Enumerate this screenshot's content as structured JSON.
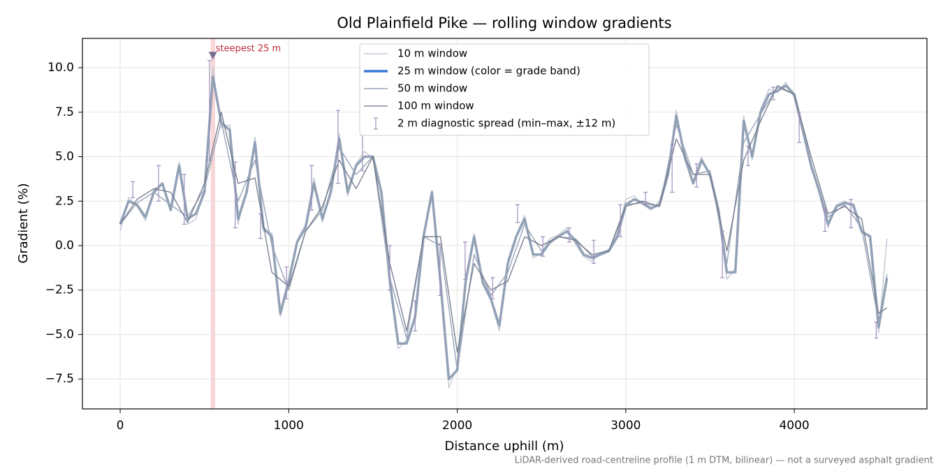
{
  "chart_data": {
    "type": "line",
    "title": "Old Plainfield Pike — rolling window gradients",
    "x_label": "Distance uphill (m)",
    "y_label": "Gradient (%)",
    "footnote": "LiDAR-derived road-centreline profile (1 m DTM, bilinear) — not a surveyed asphalt gradient",
    "xlim": [
      -224,
      4787
    ],
    "ylim": [
      -9.18,
      11.65
    ],
    "xticks": [
      0,
      1000,
      2000,
      3000,
      4000
    ],
    "yticks": [
      {
        "value": -7.5,
        "label": "−7.5"
      },
      {
        "value": -5,
        "label": "−5.0"
      },
      {
        "value": -2.5,
        "label": "−2.5"
      },
      {
        "value": 0,
        "label": "0.0"
      },
      2.5,
      {
        "value": 5,
        "label": "5.0"
      },
      7.5,
      {
        "value": 10,
        "label": "10.0"
      }
    ],
    "grid": true,
    "legend": "upper center",
    "series": [
      {
        "name": "10 m window",
        "color": "#c3c8d6",
        "width": 1.5,
        "x": [
          0,
          50,
          100,
          150,
          200,
          250,
          300,
          350,
          400,
          450,
          500,
          550,
          600,
          650,
          700,
          750,
          800,
          850,
          900,
          950,
          1000,
          1050,
          1100,
          1150,
          1200,
          1250,
          1300,
          1350,
          1400,
          1450,
          1500,
          1550,
          1600,
          1650,
          1700,
          1750,
          1800,
          1850,
          1900,
          1950,
          2000,
          2050,
          2100,
          2150,
          2200,
          2250,
          2300,
          2350,
          2400,
          2450,
          2500,
          2550,
          2600,
          2650,
          2700,
          2750,
          2800,
          2850,
          2900,
          2950,
          3000,
          3050,
          3100,
          3150,
          3200,
          3250,
          3300,
          3350,
          3400,
          3450,
          3500,
          3550,
          3600,
          3650,
          3700,
          3750,
          3800,
          3850,
          3900,
          3950,
          4000,
          4050,
          4100,
          4150,
          4200,
          4250,
          4300,
          4350,
          4400,
          4450,
          4500,
          4550
        ],
        "values": [
          0.8,
          2.7,
          2.2,
          1.4,
          3.2,
          3.4,
          2.1,
          4.7,
          1.2,
          1.5,
          3.2,
          10.0,
          6.6,
          6.8,
          1.2,
          3.2,
          6.1,
          0.8,
          0.7,
          -4.0,
          -2.2,
          0.3,
          1.2,
          3.8,
          1.3,
          3.2,
          6.3,
          2.8,
          4.6,
          5.3,
          4.9,
          2.8,
          -2.3,
          -5.8,
          -5.3,
          -4.2,
          0.7,
          3.1,
          -2.2,
          -8.0,
          -6.8,
          -2.2,
          0.7,
          -2.2,
          -3.1,
          -4.8,
          -0.8,
          0.6,
          1.7,
          -0.7,
          -0.4,
          0.4,
          0.6,
          1.0,
          0.1,
          -0.6,
          -0.9,
          -0.4,
          -0.2,
          0.7,
          2.6,
          2.8,
          2.3,
          2.0,
          2.5,
          4.2,
          7.6,
          4.8,
          3.6,
          5.0,
          3.8,
          1.8,
          -1.9,
          -1.3,
          7.3,
          4.8,
          7.7,
          8.8,
          8.6,
          9.2,
          8.3,
          6.6,
          4.3,
          3.1,
          1.0,
          2.3,
          2.5,
          2.1,
          0.7,
          0.6,
          -4.9,
          0.4
        ]
      },
      {
        "name": "25 m window (color = grade band)",
        "color": "#8d9db2",
        "legend_color": "#3a78d8",
        "width": 3.5,
        "x": [
          0,
          50,
          100,
          150,
          200,
          250,
          300,
          350,
          400,
          450,
          500,
          550,
          600,
          650,
          700,
          750,
          800,
          850,
          900,
          950,
          1000,
          1050,
          1100,
          1150,
          1200,
          1250,
          1300,
          1350,
          1400,
          1450,
          1500,
          1550,
          1600,
          1650,
          1700,
          1750,
          1800,
          1850,
          1900,
          1950,
          2000,
          2050,
          2100,
          2150,
          2200,
          2250,
          2300,
          2350,
          2400,
          2450,
          2500,
          2550,
          2600,
          2650,
          2700,
          2750,
          2800,
          2850,
          2900,
          2950,
          3000,
          3050,
          3100,
          3150,
          3200,
          3250,
          3300,
          3350,
          3400,
          3450,
          3500,
          3550,
          3600,
          3650,
          3700,
          3750,
          3800,
          3850,
          3900,
          3950,
          4000,
          4050,
          4100,
          4150,
          4200,
          4250,
          4300,
          4350,
          4400,
          4450,
          4500,
          4550
        ],
        "values": [
          1.2,
          2.5,
          2.3,
          1.6,
          3.0,
          3.5,
          2.0,
          4.5,
          1.5,
          1.8,
          3.0,
          9.5,
          6.9,
          6.5,
          1.5,
          3.0,
          5.8,
          1.0,
          0.5,
          -3.8,
          -2.0,
          0.2,
          1.0,
          3.5,
          1.5,
          3.0,
          6.0,
          3.0,
          4.5,
          5.0,
          5.0,
          3.0,
          -2.0,
          -5.5,
          -5.5,
          -4.0,
          0.5,
          3.0,
          -2.0,
          -7.5,
          -7.0,
          -2.0,
          0.5,
          -2.0,
          -3.0,
          -4.5,
          -1.0,
          0.5,
          1.5,
          -0.5,
          -0.5,
          0.2,
          0.5,
          0.8,
          0.3,
          -0.5,
          -0.7,
          -0.5,
          -0.3,
          0.5,
          2.3,
          2.6,
          2.4,
          2.1,
          2.3,
          4.0,
          7.3,
          5.0,
          3.5,
          4.8,
          4.0,
          2.0,
          -1.5,
          -1.5,
          7.0,
          5.0,
          7.5,
          8.5,
          8.7,
          9.0,
          8.5,
          6.5,
          4.5,
          3.0,
          1.2,
          2.2,
          2.4,
          2.3,
          0.8,
          0.5,
          -4.6,
          -1.8
        ]
      },
      {
        "name": "50 m window",
        "color": "#98a3b8",
        "width": 1.5,
        "x": [
          0,
          100,
          200,
          300,
          400,
          500,
          600,
          700,
          800,
          900,
          1000,
          1100,
          1200,
          1300,
          1400,
          1500,
          1600,
          1700,
          1800,
          1900,
          2000,
          2100,
          2200,
          2300,
          2400,
          2500,
          2600,
          2700,
          2800,
          2900,
          3000,
          3100,
          3200,
          3300,
          3400,
          3500,
          3600,
          3700,
          3800,
          3900,
          4000,
          4100,
          4200,
          4300,
          4400,
          4500,
          4550
        ],
        "values": [
          1.2,
          2.4,
          3.0,
          2.3,
          1.6,
          3.2,
          7.0,
          2.5,
          4.8,
          0.0,
          -2.5,
          0.8,
          2.0,
          5.5,
          4.0,
          5.0,
          -1.8,
          -5.2,
          0.5,
          0.0,
          -7.0,
          -0.5,
          -2.8,
          -1.5,
          1.2,
          -0.3,
          0.5,
          0.4,
          -0.6,
          -0.3,
          2.3,
          2.4,
          2.2,
          6.8,
          4.0,
          4.2,
          -1.0,
          5.8,
          7.4,
          8.9,
          8.5,
          4.6,
          1.6,
          2.3,
          1.0,
          -4.3,
          -1.6
        ]
      },
      {
        "name": "100 m window",
        "color": "#6c7385",
        "width": 1.3,
        "x": [
          0,
          100,
          200,
          300,
          400,
          500,
          600,
          700,
          800,
          900,
          1000,
          1100,
          1200,
          1300,
          1400,
          1500,
          1600,
          1700,
          1800,
          1900,
          2000,
          2100,
          2200,
          2300,
          2400,
          2500,
          2600,
          2700,
          2800,
          2900,
          3000,
          3100,
          3200,
          3300,
          3400,
          3500,
          3600,
          3700,
          3800,
          3900,
          4000,
          4100,
          4200,
          4300,
          4400,
          4500,
          4550
        ],
        "values": [
          1.2,
          2.6,
          3.2,
          3.0,
          1.3,
          3.5,
          7.5,
          3.5,
          3.8,
          -1.5,
          -2.3,
          0.8,
          2.2,
          4.8,
          3.2,
          5.0,
          -1.0,
          -4.8,
          0.5,
          0.5,
          -6.0,
          -1.0,
          -2.5,
          -2.0,
          0.5,
          0.0,
          0.5,
          0.3,
          -0.5,
          -0.3,
          2.2,
          2.5,
          2.2,
          6.0,
          4.0,
          4.0,
          -0.3,
          4.8,
          7.0,
          9.0,
          8.5,
          5.0,
          1.8,
          2.2,
          1.5,
          -3.8,
          -3.5
        ]
      }
    ],
    "spread": {
      "name": "2 m diagnostic spread (min–max, ±12 m)",
      "color": "#9d8fbd",
      "x": [
        75,
        228,
        380,
        530,
        683,
        833,
        987,
        1136,
        1293,
        1438,
        1600,
        1750,
        1898,
        2047,
        2210,
        2358,
        2508,
        2665,
        2810,
        2968,
        3117,
        3275,
        3420,
        3573,
        3726,
        3876,
        4029,
        4182,
        4336,
        4486
      ],
      "low": [
        2.7,
        2.5,
        1.2,
        4.8,
        1.0,
        0.4,
        -3.0,
        2.0,
        3.5,
        4.2,
        -2.5,
        -4.8,
        -2.8,
        -1.9,
        -3.0,
        1.3,
        -0.6,
        0.2,
        -1.0,
        0.5,
        2.3,
        3.0,
        3.3,
        -1.8,
        4.5,
        8.2,
        5.8,
        0.8,
        1.0,
        -5.2
      ],
      "high": [
        3.6,
        4.5,
        4.0,
        10.4,
        4.7,
        1.8,
        -1.2,
        4.5,
        7.6,
        6.2,
        0.0,
        -3.1,
        0.1,
        0.2,
        -1.8,
        2.3,
        0.5,
        1.0,
        0.3,
        2.3,
        3.0,
        5.7,
        4.6,
        0.8,
        5.6,
        8.9,
        7.5,
        2.0,
        2.6,
        -4.3
      ]
    },
    "highlight": {
      "span": [
        538,
        563
      ],
      "color": "#f4b9bd",
      "marker_x": 550,
      "marker_y": 10.7,
      "label": "steepest 25 m",
      "label_color": "#c0283a",
      "marker_color": "#7a6f92"
    }
  }
}
